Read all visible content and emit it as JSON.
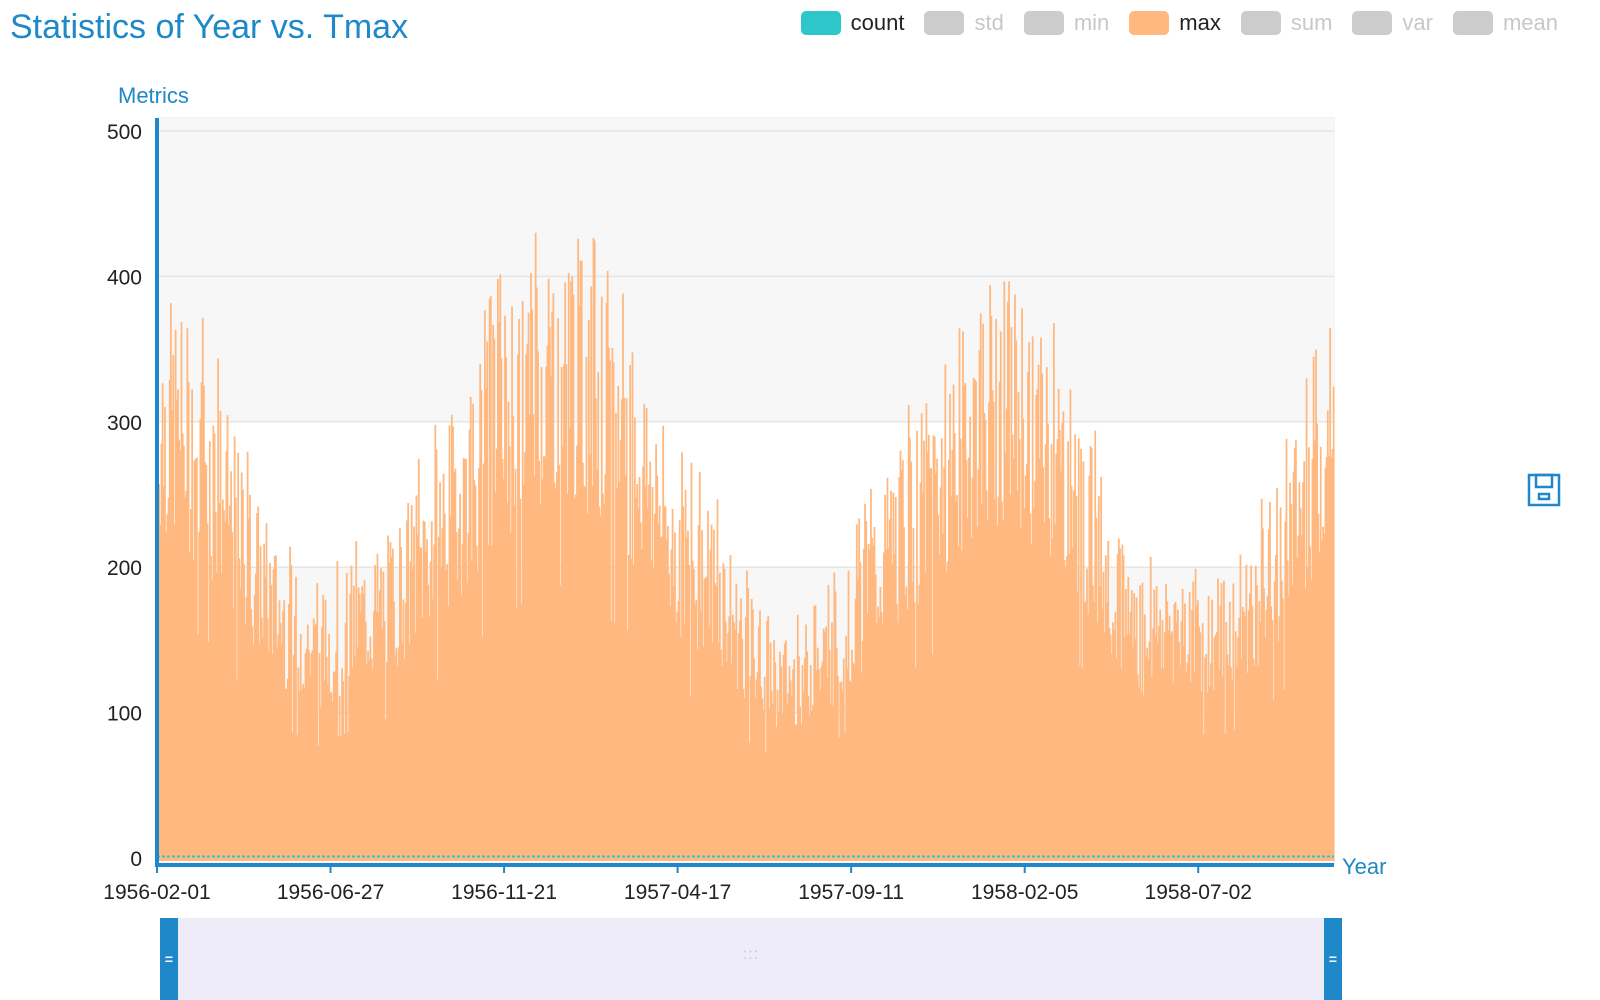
{
  "chart_data": {
    "type": "bar",
    "title": "Statistics of Year vs. Tmax",
    "xlabel": "Year",
    "ylabel": "Metrics",
    "ylim": [
      0,
      500
    ],
    "yticks": [
      0,
      100,
      200,
      300,
      400,
      500
    ],
    "xticks": [
      "1956-02-01",
      "1956-06-27",
      "1956-11-21",
      "1957-04-17",
      "1957-09-11",
      "1958-02-05",
      "1958-07-02"
    ],
    "x_start": "1956-02-01",
    "x_end": "1958-10-25",
    "grid": true,
    "legend_position": "top-right",
    "series": [
      {
        "name": "count",
        "color": "#2ec7c9",
        "visible": true,
        "values_note": "all values near 1 (flat line along the x-axis)"
      },
      {
        "name": "max",
        "color": "#ffb980",
        "visible": true,
        "monthly_profile": [
          {
            "date": "1956-02",
            "value": 300
          },
          {
            "date": "1956-03",
            "value": 270
          },
          {
            "date": "1956-04",
            "value": 210
          },
          {
            "date": "1956-05",
            "value": 165
          },
          {
            "date": "1956-06",
            "value": 140
          },
          {
            "date": "1956-07",
            "value": 160
          },
          {
            "date": "1956-08",
            "value": 175
          },
          {
            "date": "1956-09",
            "value": 210
          },
          {
            "date": "1956-10",
            "value": 250
          },
          {
            "date": "1956-11",
            "value": 295
          },
          {
            "date": "1956-12",
            "value": 330
          },
          {
            "date": "1957-01",
            "value": 345
          },
          {
            "date": "1957-02",
            "value": 300
          },
          {
            "date": "1957-03",
            "value": 275
          },
          {
            "date": "1957-04",
            "value": 210
          },
          {
            "date": "1957-05",
            "value": 190
          },
          {
            "date": "1957-06",
            "value": 145
          },
          {
            "date": "1957-07",
            "value": 120
          },
          {
            "date": "1957-08",
            "value": 130
          },
          {
            "date": "1957-09",
            "value": 170
          },
          {
            "date": "1957-10",
            "value": 215
          },
          {
            "date": "1957-11",
            "value": 250
          },
          {
            "date": "1957-12",
            "value": 290
          },
          {
            "date": "1958-01",
            "value": 320
          },
          {
            "date": "1958-02",
            "value": 290
          },
          {
            "date": "1958-03",
            "value": 255
          },
          {
            "date": "1958-04",
            "value": 200
          },
          {
            "date": "1958-05",
            "value": 150
          },
          {
            "date": "1958-06",
            "value": 165
          },
          {
            "date": "1958-07",
            "value": 150
          },
          {
            "date": "1958-08",
            "value": 170
          },
          {
            "date": "1958-09",
            "value": 215
          },
          {
            "date": "1958-10",
            "value": 270
          }
        ]
      }
    ]
  },
  "legend": [
    {
      "name": "count",
      "color": "#2ec7c9",
      "active": true
    },
    {
      "name": "std",
      "color": "#cccccc",
      "active": false
    },
    {
      "name": "min",
      "color": "#cccccc",
      "active": false
    },
    {
      "name": "max",
      "color": "#ffb980",
      "active": true
    },
    {
      "name": "sum",
      "color": "#cccccc",
      "active": false
    },
    {
      "name": "var",
      "color": "#cccccc",
      "active": false
    },
    {
      "name": "mean",
      "color": "#cccccc",
      "active": false
    }
  ],
  "toolbox": {
    "icon": "save-icon"
  },
  "zoom": {
    "handle_glyph": "=",
    "grip_glyph": ":::"
  },
  "colors": {
    "accent": "#1e88c8",
    "max_bar": "#ffb980",
    "count_line": "#2ec7c9"
  }
}
